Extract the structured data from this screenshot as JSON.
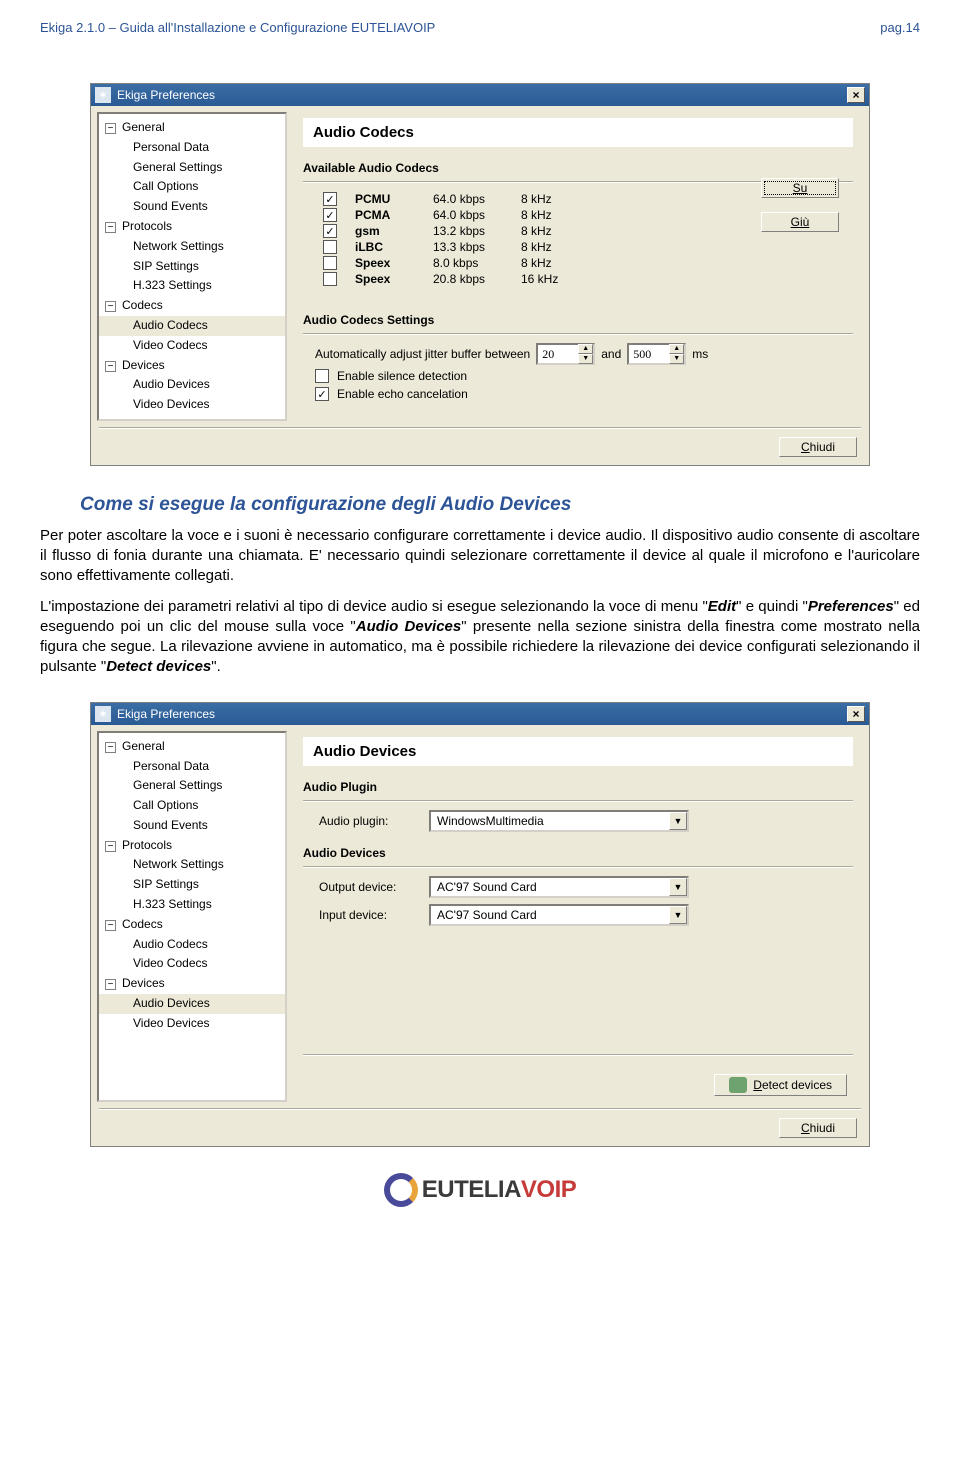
{
  "header": {
    "left": "Ekiga 2.1.0 – Guida all'Installazione e Configurazione EUTELIAVOIP",
    "right": "pag.14"
  },
  "section_title": "Come si esegue la configurazione degli Audio Devices",
  "para1": "Per poter ascoltare la voce e i suoni è necessario configurare correttamente i device audio. Il dispositivo audio consente di ascoltare il flusso di fonia durante una chiamata. E' necessario quindi selezionare correttamente il device al quale il microfono e l'auricolare sono effettivamente collegati.",
  "para2a": "L'impostazione dei parametri relativi al tipo di device audio si esegue selezionando la voce di menu \"",
  "kw_edit": "Edit",
  "para2b": "\" e quindi \"",
  "kw_prefs": "Preferences",
  "para2c": "\" ed eseguendo poi un clic del mouse sulla voce \"",
  "kw_audio_devices": "Audio Devices",
  "para2d": "\" presente nella sezione sinistra della finestra come mostrato nella figura che segue. La rilevazione avviene in automatico, ma è possibile richiedere la rilevazione dei device configurati selezionando il pulsante \"",
  "kw_detect": "Detect devices",
  "para2e": "\".",
  "win1": {
    "title": "Ekiga Preferences",
    "close_glyph": "×",
    "tree": [
      {
        "lvl": 0,
        "toggle": "−",
        "label": "General"
      },
      {
        "lvl": 1,
        "label": "Personal Data"
      },
      {
        "lvl": 1,
        "label": "General Settings"
      },
      {
        "lvl": 1,
        "label": "Call Options"
      },
      {
        "lvl": 1,
        "label": "Sound Events"
      },
      {
        "lvl": 0,
        "toggle": "−",
        "label": "Protocols"
      },
      {
        "lvl": 1,
        "label": "Network Settings"
      },
      {
        "lvl": 1,
        "label": "SIP Settings"
      },
      {
        "lvl": 1,
        "label": "H.323 Settings"
      },
      {
        "lvl": 0,
        "toggle": "−",
        "label": "Codecs"
      },
      {
        "lvl": 1,
        "label": "Audio Codecs",
        "selected": true
      },
      {
        "lvl": 1,
        "label": "Video Codecs"
      },
      {
        "lvl": 0,
        "toggle": "−",
        "label": "Devices"
      },
      {
        "lvl": 1,
        "label": "Audio Devices"
      },
      {
        "lvl": 1,
        "label": "Video Devices"
      }
    ],
    "banner": "Audio Codecs",
    "group_available": "Available Audio Codecs",
    "codecs": [
      {
        "on": true,
        "name": "PCMU",
        "rate": "64.0 kbps",
        "khz": "8 kHz"
      },
      {
        "on": true,
        "name": "PCMA",
        "rate": "64.0 kbps",
        "khz": "8 kHz"
      },
      {
        "on": true,
        "name": "gsm",
        "rate": "13.2 kbps",
        "khz": "8 kHz"
      },
      {
        "on": false,
        "name": "iLBC",
        "rate": "13.3 kbps",
        "khz": "8 kHz"
      },
      {
        "on": false,
        "name": "Speex",
        "rate": "8.0 kbps",
        "khz": "8 kHz"
      },
      {
        "on": false,
        "name": "Speex",
        "rate": "20.8 kbps",
        "khz": "16 kHz"
      }
    ],
    "btn_up": "Su",
    "btn_down": "Giù",
    "group_settings": "Audio Codecs Settings",
    "jitter_label_a": "Automatically adjust jitter buffer between",
    "jitter_min": "20",
    "jitter_label_b": "and",
    "jitter_max": "500",
    "jitter_label_c": "ms",
    "silence_label": "Enable silence detection",
    "silence_on": false,
    "echo_label": "Enable echo cancelation",
    "echo_on": true,
    "close_btn": "Chiudi"
  },
  "win2": {
    "title": "Ekiga Preferences",
    "close_glyph": "×",
    "tree": [
      {
        "lvl": 0,
        "toggle": "−",
        "label": "General"
      },
      {
        "lvl": 1,
        "label": "Personal Data"
      },
      {
        "lvl": 1,
        "label": "General Settings"
      },
      {
        "lvl": 1,
        "label": "Call Options"
      },
      {
        "lvl": 1,
        "label": "Sound Events"
      },
      {
        "lvl": 0,
        "toggle": "−",
        "label": "Protocols"
      },
      {
        "lvl": 1,
        "label": "Network Settings"
      },
      {
        "lvl": 1,
        "label": "SIP Settings"
      },
      {
        "lvl": 1,
        "label": "H.323 Settings"
      },
      {
        "lvl": 0,
        "toggle": "−",
        "label": "Codecs"
      },
      {
        "lvl": 1,
        "label": "Audio Codecs"
      },
      {
        "lvl": 1,
        "label": "Video Codecs"
      },
      {
        "lvl": 0,
        "toggle": "−",
        "label": "Devices"
      },
      {
        "lvl": 1,
        "label": "Audio Devices",
        "selected": true
      },
      {
        "lvl": 1,
        "label": "Video Devices"
      }
    ],
    "banner": "Audio Devices",
    "group_plugin": "Audio Plugin",
    "plugin_label": "Audio plugin:",
    "plugin_value": "WindowsMultimedia",
    "group_devices": "Audio Devices",
    "output_label": "Output device:",
    "output_value": "AC'97 Sound Card",
    "input_label": "Input device:",
    "input_value": "AC'97 Sound Card",
    "detect_btn": "Detect devices",
    "close_btn": "Chiudi"
  },
  "footer_logo": {
    "brand": "EUTELIA",
    "suffix": "VOIP"
  }
}
